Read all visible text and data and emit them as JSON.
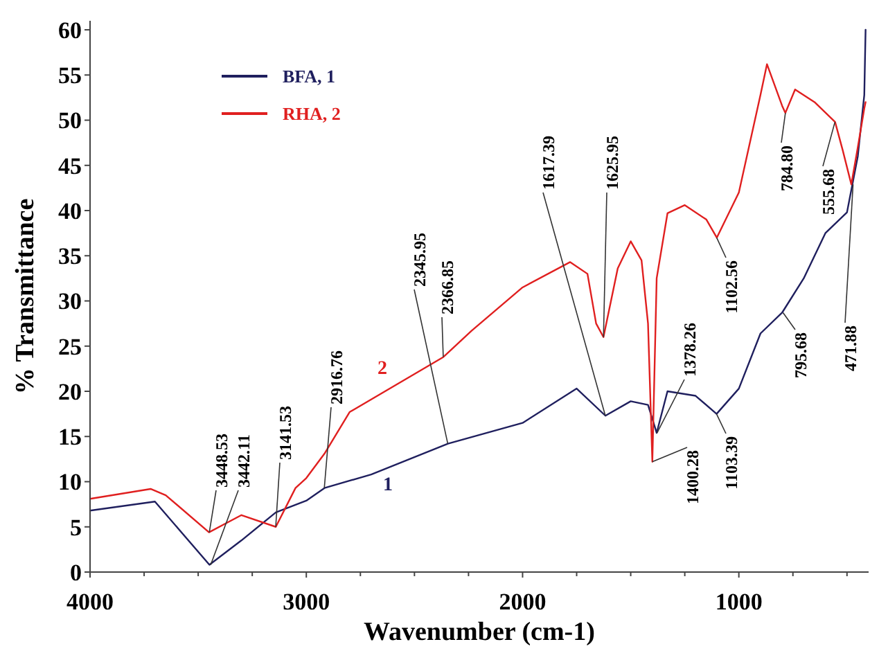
{
  "chart_data": {
    "type": "line",
    "xlabel": "Wavenumber (cm-1)",
    "ylabel": "% Transmittance",
    "xlim": [
      4000,
      400
    ],
    "ylim": [
      0,
      61
    ],
    "xticks": [
      4000,
      {
        "value": 3750,
        "label": null
      },
      {
        "value": 3500,
        "label": null
      },
      {
        "value": 3250,
        "label": null
      },
      3000,
      {
        "value": 2750,
        "label": null
      },
      {
        "value": 2500,
        "label": null
      },
      {
        "value": 2250,
        "label": null
      },
      2000,
      {
        "value": 1750,
        "label": null
      },
      {
        "value": 1500,
        "label": null
      },
      {
        "value": 1250,
        "label": null
      },
      1000,
      {
        "value": 750,
        "label": null
      },
      {
        "value": 500,
        "label": null
      }
    ],
    "yticks": [
      0,
      5,
      10,
      15,
      20,
      25,
      30,
      35,
      40,
      45,
      50,
      55,
      60
    ],
    "legend": "top left",
    "grid": false,
    "series": [
      {
        "name": "BFA, 1",
        "color": "#1f1f5e",
        "x": [
          4000,
          3700,
          3448,
          3300,
          3141,
          3000,
          2916,
          2700,
          2345,
          2000,
          1750,
          1617,
          1500,
          1420,
          1380,
          1330,
          1200,
          1103,
          1000,
          900,
          800,
          700,
          600,
          500,
          450,
          420,
          414
        ],
        "values": [
          6.8,
          7.8,
          0.8,
          3.5,
          6.6,
          7.9,
          9.3,
          10.8,
          14.2,
          16.5,
          20.3,
          17.3,
          18.9,
          18.5,
          15.4,
          20,
          19.5,
          17.5,
          20.3,
          26.4,
          28.7,
          32.5,
          37.5,
          39.8,
          46,
          52.8,
          60
        ]
      },
      {
        "name": "RHA, 2",
        "color": "#e01f1f",
        "x": [
          4000,
          3720,
          3650,
          3450,
          3300,
          3141,
          3050,
          3000,
          2916,
          2800,
          2366,
          2236,
          2000,
          1780,
          1700,
          1660,
          1626,
          1560,
          1500,
          1450,
          1420,
          1400,
          1380,
          1330,
          1250,
          1150,
          1102,
          1000,
          900,
          870,
          800,
          785,
          740,
          650,
          555,
          520,
          480,
          450,
          420,
          414
        ],
        "values": [
          8.1,
          9.2,
          8.5,
          4.4,
          6.3,
          5.0,
          9.3,
          10.4,
          13.1,
          17.7,
          23.8,
          26.7,
          31.5,
          34.3,
          33,
          27.5,
          26,
          33.6,
          36.6,
          34.5,
          27.5,
          12.2,
          32.5,
          39.7,
          40.6,
          39,
          37,
          42,
          52.8,
          56.2,
          51.6,
          50.8,
          53.4,
          52,
          49.8,
          46.7,
          42.9,
          47,
          51.3,
          52
        ]
      }
    ],
    "annotations": [
      {
        "text": "3448.53",
        "x": 3448.53,
        "y": 4.4
      },
      {
        "text": "3442.11",
        "x": 3442.11,
        "y": 0.8
      },
      {
        "text": "3141.53",
        "x": 3141.53,
        "y": 5.0
      },
      {
        "text": "2916.76",
        "x": 2916.76,
        "y": 9.3
      },
      {
        "text": "2345.95",
        "x": 2345.95,
        "y": 14.2
      },
      {
        "text": "2366.85",
        "x": 2366.85,
        "y": 23.8
      },
      {
        "text": "1617.39",
        "x": 1617.39,
        "y": 17.3
      },
      {
        "text": "1625.95",
        "x": 1625.95,
        "y": 26
      },
      {
        "text": "1378.26",
        "x": 1378.26,
        "y": 15.4
      },
      {
        "text": "1400.28",
        "x": 1400.28,
        "y": 12.2
      },
      {
        "text": "1102.56",
        "x": 1102.56,
        "y": 37
      },
      {
        "text": "1103.39",
        "x": 1103.39,
        "y": 17.5
      },
      {
        "text": "784.80",
        "x": 784.8,
        "y": 50.8
      },
      {
        "text": "555.68",
        "x": 555.68,
        "y": 49.8
      },
      {
        "text": "795.68",
        "x": 795.68,
        "y": 28.7
      },
      {
        "text": "471.88",
        "x": 471.88,
        "y": 42.9
      },
      "1",
      "2"
    ]
  }
}
